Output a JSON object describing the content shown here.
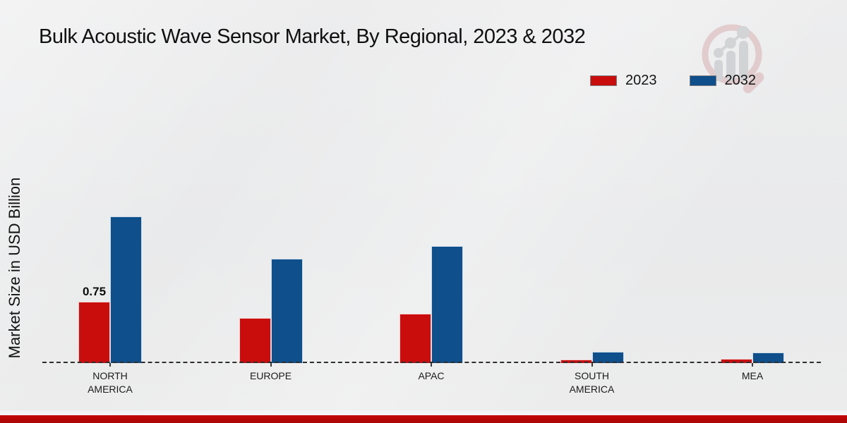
{
  "title": "Bulk Acoustic Wave Sensor Market, By Regional, 2023 & 2032",
  "y_axis_label": "Market Size in USD Billion",
  "legend": {
    "items": [
      {
        "label": "2023",
        "color": "#c90d0d"
      },
      {
        "label": "2032",
        "color": "#0e4f8c"
      }
    ]
  },
  "watermark_icon": "market-research-magnifier-growth-logo",
  "footer_bar_color": "#b30707",
  "chart_data": {
    "type": "bar",
    "categories": [
      "NORTH AMERICA",
      "EUROPE",
      "APAC",
      "SOUTH AMERICA",
      "MEA"
    ],
    "series": [
      {
        "name": "2023",
        "color": "#c90d0d",
        "values": [
          0.75,
          0.55,
          0.6,
          0.04,
          0.05
        ]
      },
      {
        "name": "2032",
        "color": "#0e4f8c",
        "values": [
          1.79,
          1.28,
          1.43,
          0.14,
          0.13
        ]
      }
    ],
    "data_labels": [
      {
        "series": "2023",
        "category": "NORTH AMERICA",
        "text": "0.75"
      }
    ],
    "title": "Bulk Acoustic Wave Sensor Market, By Regional, 2023 & 2032",
    "xlabel": "",
    "ylabel": "Market Size in USD Billion",
    "ylim": [
      0,
      2.0
    ],
    "grid": false,
    "baseline_style": "dashed",
    "legend_position": "top-right"
  }
}
